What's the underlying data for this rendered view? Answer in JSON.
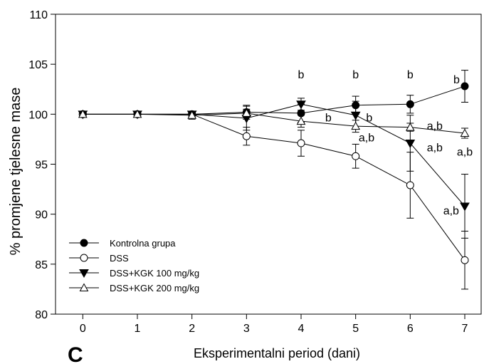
{
  "panel_letter": "C",
  "chart_data": {
    "type": "line",
    "xlabel": "Eksperimentalni period (dani)",
    "ylabel": "% promjene tjelesne mase",
    "x": [
      0,
      1,
      2,
      3,
      4,
      5,
      6,
      7
    ],
    "xlim": [
      -0.5,
      7.3
    ],
    "ylim": [
      80,
      110
    ],
    "yticks": [
      80,
      85,
      90,
      95,
      100,
      105,
      110
    ],
    "xticks": [
      0,
      1,
      2,
      3,
      4,
      5,
      6,
      7
    ],
    "grid": false,
    "legend_position": "bottom-left",
    "series": [
      {
        "name": "Kontrolna grupa",
        "marker": "filled-circle",
        "values": [
          100,
          100,
          100,
          100.2,
          100.1,
          100.9,
          101.0,
          102.8
        ],
        "errors": [
          0,
          0,
          0.2,
          0.7,
          0.9,
          0.9,
          0.9,
          1.6
        ]
      },
      {
        "name": "DSS",
        "marker": "open-circle",
        "values": [
          100,
          100,
          100,
          97.8,
          97.1,
          95.8,
          92.9,
          85.4
        ],
        "errors": [
          0,
          0,
          0.3,
          0.9,
          1.3,
          1.2,
          3.3,
          2.9
        ]
      },
      {
        "name": "DSS+KGK 100 mg/kg",
        "marker": "filled-triangle-down",
        "values": [
          100,
          100,
          100,
          99.6,
          101.0,
          99.9,
          97.1,
          90.8
        ],
        "errors": [
          0,
          0,
          0.2,
          1.2,
          0.6,
          1.4,
          2.8,
          3.2
        ]
      },
      {
        "name": "DSS+KGK 200 mg/kg",
        "marker": "open-triangle-up",
        "values": [
          100,
          100,
          99.9,
          100.1,
          99.3,
          98.8,
          98.7,
          98.1
        ],
        "errors": [
          0,
          0,
          0.4,
          0.4,
          0.6,
          0.6,
          0.4,
          0.5
        ]
      }
    ],
    "annotations": [
      {
        "x": 4,
        "y": 104.0,
        "text": "b"
      },
      {
        "x": 4.5,
        "y": 99.7,
        "text": "b"
      },
      {
        "x": 5,
        "y": 104.0,
        "text": "b"
      },
      {
        "x": 5.25,
        "y": 99.7,
        "text": "b"
      },
      {
        "x": 5.2,
        "y": 97.7,
        "text": "a,b"
      },
      {
        "x": 6,
        "y": 104.0,
        "text": "b"
      },
      {
        "x": 6.45,
        "y": 98.9,
        "text": "a,b"
      },
      {
        "x": 6.45,
        "y": 96.7,
        "text": "a,b"
      },
      {
        "x": 6.85,
        "y": 103.5,
        "text": "b"
      },
      {
        "x": 7,
        "y": 96.3,
        "text": "a,b"
      },
      {
        "x": 6.75,
        "y": 90.4,
        "text": "a,b"
      }
    ]
  }
}
